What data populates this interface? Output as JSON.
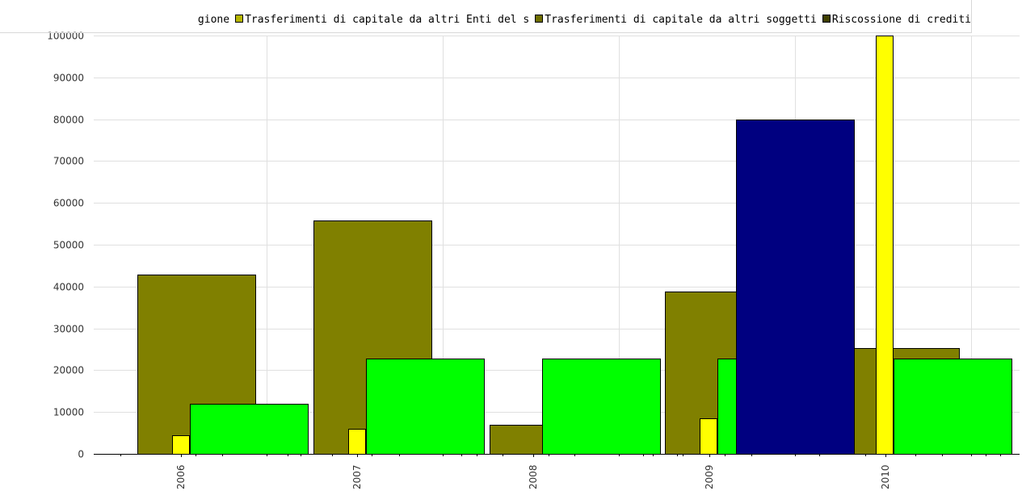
{
  "legend": [
    {
      "label": "gione",
      "color": "#808000"
    },
    {
      "label": "Trasferimenti di capitale da altri Enti del s",
      "color": "#b6b600"
    },
    {
      "label": "Trasferimenti di capitale da altri soggetti",
      "color": "#6f6f00"
    },
    {
      "label": "Riscossione di crediti",
      "color": "#404000"
    }
  ],
  "chart_data": {
    "type": "bar",
    "xlabel": "",
    "ylabel": "",
    "ylim": [
      0,
      100000
    ],
    "yticks": [
      0,
      10000,
      20000,
      30000,
      40000,
      50000,
      60000,
      70000,
      80000,
      90000,
      100000
    ],
    "xticks": [
      "2006",
      "2007",
      "2008",
      "2009",
      "2010"
    ],
    "grid": true,
    "legend_position": "top",
    "bars": [
      {
        "year": "2006",
        "series": "olive",
        "color": "#808000",
        "value": 42800,
        "slot": 0
      },
      {
        "year": "2006",
        "series": "yellow",
        "color": "#ffff00",
        "value": 4500,
        "slot": 1
      },
      {
        "year": "2006",
        "series": "green",
        "color": "#00ff00",
        "value": 12000,
        "slot": 2
      },
      {
        "year": "2007",
        "series": "olive",
        "color": "#808000",
        "value": 55800,
        "slot": 0
      },
      {
        "year": "2007",
        "series": "yellow",
        "color": "#ffff00",
        "value": 6000,
        "slot": 1
      },
      {
        "year": "2007",
        "series": "green",
        "color": "#00ff00",
        "value": 22700,
        "slot": 2
      },
      {
        "year": "2008",
        "series": "olive",
        "color": "#808000",
        "value": 7000,
        "slot": 0
      },
      {
        "year": "2008",
        "series": "green",
        "color": "#00ff00",
        "value": 22700,
        "slot": 2
      },
      {
        "year": "2009",
        "series": "olive",
        "color": "#808000",
        "value": 38800,
        "slot": 0
      },
      {
        "year": "2009",
        "series": "yellow",
        "color": "#ffff00",
        "value": 8500,
        "slot": 1
      },
      {
        "year": "2009",
        "series": "green",
        "color": "#00ff00",
        "value": 22700,
        "slot": 2
      },
      {
        "year": "2009",
        "series": "navy",
        "color": "#000080",
        "value": 80000,
        "slot": 3
      },
      {
        "year": "2010",
        "series": "olive",
        "color": "#808000",
        "value": 25200,
        "slot": 0
      },
      {
        "year": "2010",
        "series": "yellow",
        "color": "#ffff00",
        "value": 100000,
        "slot": 1
      },
      {
        "year": "2010",
        "series": "green",
        "color": "#00ff00",
        "value": 22700,
        "slot": 2
      }
    ]
  }
}
